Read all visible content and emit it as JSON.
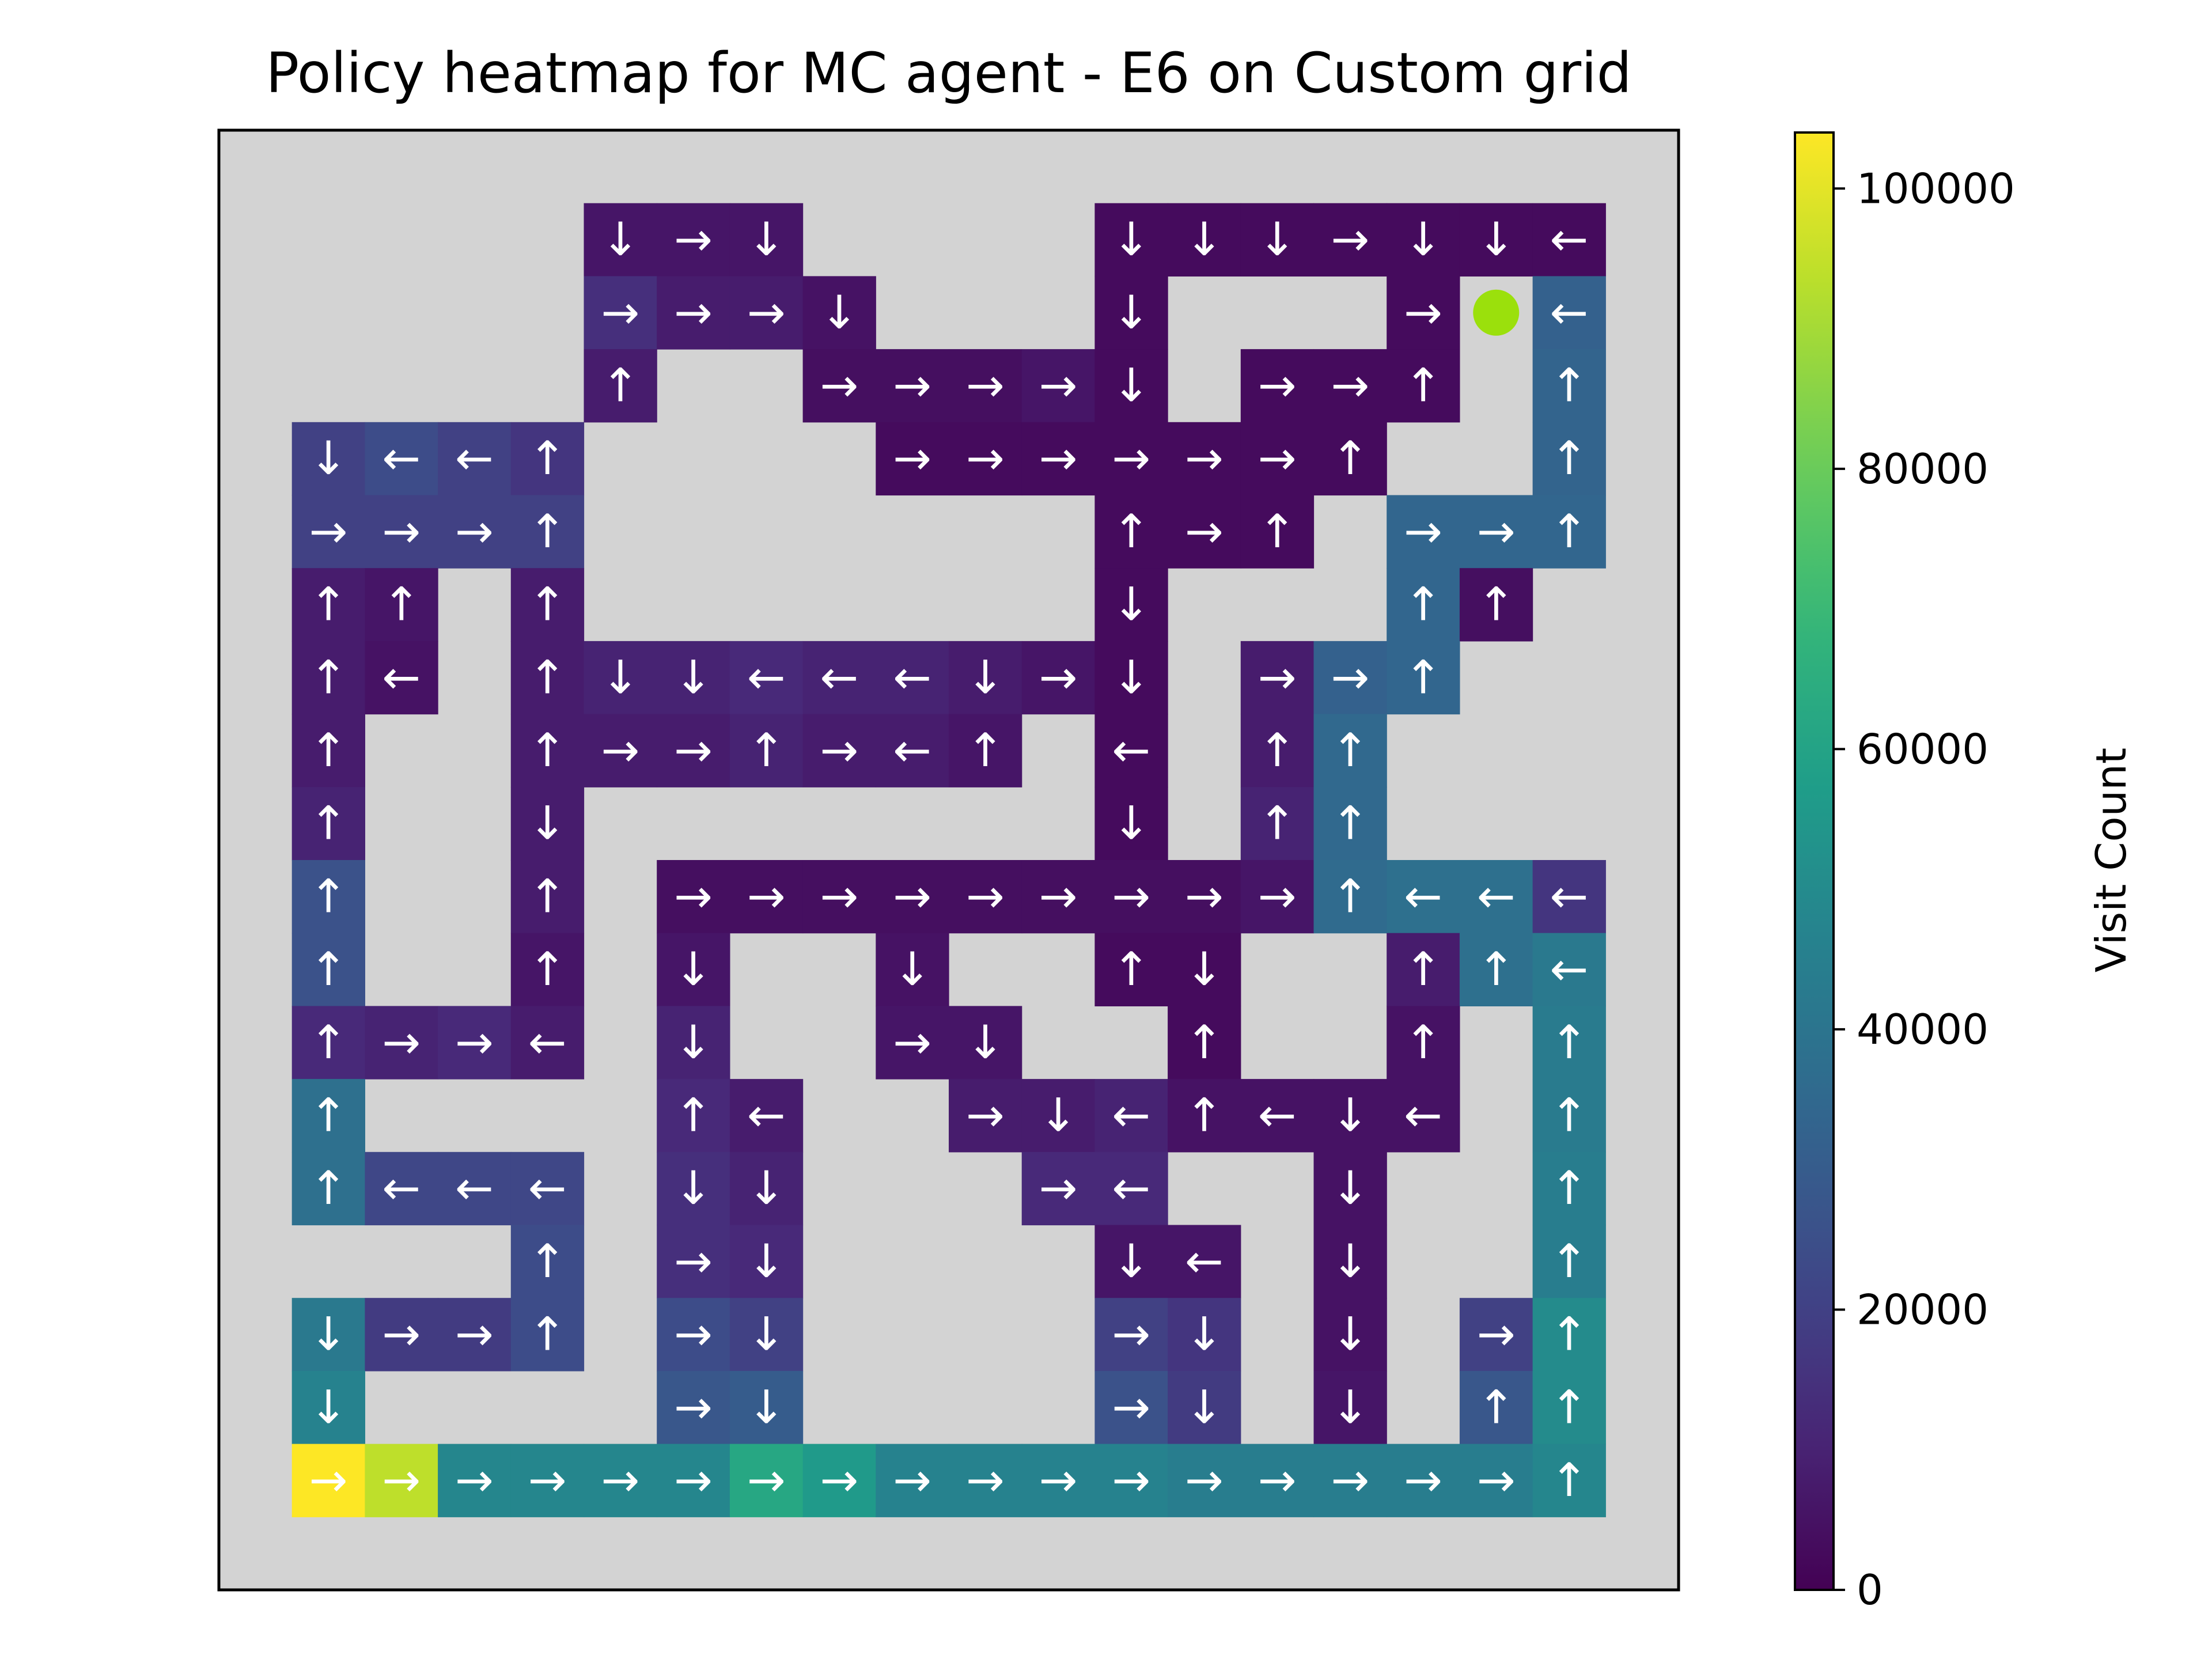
{
  "chart_data": {
    "type": "heatmap",
    "title": "Policy heatmap for MC agent - E6 on Custom grid",
    "colorbar": {
      "label": "Visit Count",
      "colormap": "viridis",
      "range": [
        0,
        104000
      ],
      "ticks": [
        0,
        20000,
        40000,
        60000,
        80000,
        100000
      ],
      "tick_labels": [
        "0",
        "20000",
        "40000",
        "60000",
        "80000",
        "100000"
      ]
    },
    "grid": {
      "rows": 20,
      "cols": 20,
      "wall_color": "#d3d3d3"
    },
    "goal": {
      "row": 2,
      "col": 17,
      "color": "#9be00c"
    },
    "cells": [
      [
        1,
        5,
        "↓",
        6000
      ],
      [
        1,
        6,
        "→",
        6000
      ],
      [
        1,
        7,
        "↓",
        6000
      ],
      [
        1,
        12,
        "↓",
        3000
      ],
      [
        1,
        13,
        "↓",
        3000
      ],
      [
        1,
        14,
        "↓",
        3000
      ],
      [
        1,
        15,
        "→",
        3000
      ],
      [
        1,
        16,
        "↓",
        3000
      ],
      [
        1,
        17,
        "↓",
        3000
      ],
      [
        1,
        18,
        "←",
        3000
      ],
      [
        2,
        5,
        "→",
        14000
      ],
      [
        2,
        6,
        "→",
        8000
      ],
      [
        2,
        7,
        "→",
        8000
      ],
      [
        2,
        8,
        "↓",
        5000
      ],
      [
        2,
        12,
        "↓",
        3000
      ],
      [
        2,
        16,
        "→",
        3000
      ],
      [
        2,
        18,
        "←",
        32000
      ],
      [
        3,
        5,
        "↑",
        8000
      ],
      [
        3,
        8,
        "→",
        4000
      ],
      [
        3,
        9,
        "→",
        4000
      ],
      [
        3,
        10,
        "→",
        4000
      ],
      [
        3,
        11,
        "→",
        6000
      ],
      [
        3,
        12,
        "↓",
        3000
      ],
      [
        3,
        14,
        "→",
        3000
      ],
      [
        3,
        15,
        "→",
        3000
      ],
      [
        3,
        16,
        "↑",
        3000
      ],
      [
        3,
        18,
        "↑",
        33000
      ],
      [
        4,
        1,
        "↓",
        20000
      ],
      [
        4,
        2,
        "←",
        24000
      ],
      [
        4,
        3,
        "←",
        20000
      ],
      [
        4,
        4,
        "↑",
        16000
      ],
      [
        4,
        9,
        "→",
        3000
      ],
      [
        4,
        10,
        "→",
        3000
      ],
      [
        4,
        11,
        "→",
        3000
      ],
      [
        4,
        12,
        "→",
        3000
      ],
      [
        4,
        13,
        "→",
        3000
      ],
      [
        4,
        14,
        "→",
        3000
      ],
      [
        4,
        15,
        "↑",
        3000
      ],
      [
        4,
        18,
        "↑",
        33000
      ],
      [
        5,
        1,
        "→",
        20000
      ],
      [
        5,
        2,
        "→",
        20000
      ],
      [
        5,
        3,
        "→",
        20000
      ],
      [
        5,
        4,
        "↑",
        20000
      ],
      [
        5,
        12,
        "↑",
        3000
      ],
      [
        5,
        13,
        "→",
        3000
      ],
      [
        5,
        14,
        "↑",
        3000
      ],
      [
        5,
        16,
        "→",
        34000
      ],
      [
        5,
        17,
        "→",
        34000
      ],
      [
        5,
        18,
        "↑",
        34000
      ],
      [
        6,
        1,
        "↑",
        8000
      ],
      [
        6,
        2,
        "↑",
        6000
      ],
      [
        6,
        4,
        "↑",
        8000
      ],
      [
        6,
        12,
        "↓",
        3000
      ],
      [
        6,
        16,
        "↑",
        34000
      ],
      [
        6,
        17,
        "↑",
        4000
      ],
      [
        7,
        1,
        "↑",
        8000
      ],
      [
        7,
        2,
        "←",
        5000
      ],
      [
        7,
        4,
        "↑",
        8000
      ],
      [
        7,
        5,
        "↓",
        10000
      ],
      [
        7,
        6,
        "↓",
        10000
      ],
      [
        7,
        7,
        "←",
        12000
      ],
      [
        7,
        8,
        "←",
        10000
      ],
      [
        7,
        9,
        "←",
        10000
      ],
      [
        7,
        10,
        "↓",
        8000
      ],
      [
        7,
        11,
        "→",
        6000
      ],
      [
        7,
        12,
        "↓",
        3000
      ],
      [
        7,
        14,
        "→",
        8000
      ],
      [
        7,
        15,
        "→",
        32000
      ],
      [
        7,
        16,
        "↑",
        34000
      ],
      [
        8,
        1,
        "↑",
        8000
      ],
      [
        8,
        4,
        "↑",
        8000
      ],
      [
        8,
        5,
        "→",
        8000
      ],
      [
        8,
        6,
        "→",
        8000
      ],
      [
        8,
        7,
        "↑",
        10000
      ],
      [
        8,
        8,
        "→",
        8000
      ],
      [
        8,
        9,
        "←",
        8000
      ],
      [
        8,
        10,
        "↑",
        6000
      ],
      [
        8,
        12,
        "←",
        3000
      ],
      [
        8,
        14,
        "↑",
        8000
      ],
      [
        8,
        15,
        "↑",
        35000
      ],
      [
        9,
        1,
        "↑",
        10000
      ],
      [
        9,
        4,
        "↓",
        8000
      ],
      [
        9,
        12,
        "↓",
        3000
      ],
      [
        9,
        14,
        "↑",
        10000
      ],
      [
        9,
        15,
        "↑",
        35000
      ],
      [
        10,
        1,
        "↑",
        26000
      ],
      [
        10,
        4,
        "↑",
        8000
      ],
      [
        10,
        6,
        "→",
        4000
      ],
      [
        10,
        7,
        "→",
        4000
      ],
      [
        10,
        8,
        "→",
        4000
      ],
      [
        10,
        9,
        "→",
        4000
      ],
      [
        10,
        10,
        "→",
        4000
      ],
      [
        10,
        11,
        "→",
        4000
      ],
      [
        10,
        12,
        "→",
        4000
      ],
      [
        10,
        13,
        "→",
        4000
      ],
      [
        10,
        14,
        "→",
        6000
      ],
      [
        10,
        15,
        "↑",
        36000
      ],
      [
        10,
        16,
        "←",
        38000
      ],
      [
        10,
        17,
        "←",
        38000
      ],
      [
        10,
        18,
        "←",
        16000
      ],
      [
        11,
        1,
        "↑",
        26000
      ],
      [
        11,
        4,
        "↑",
        6000
      ],
      [
        11,
        6,
        "↓",
        6000
      ],
      [
        11,
        9,
        "↓",
        5000
      ],
      [
        11,
        12,
        "↑",
        3000
      ],
      [
        11,
        13,
        "↓",
        3000
      ],
      [
        11,
        16,
        "↑",
        8000
      ],
      [
        11,
        17,
        "↑",
        38000
      ],
      [
        11,
        18,
        "←",
        42000
      ],
      [
        12,
        1,
        "↑",
        12000
      ],
      [
        12,
        2,
        "→",
        10000
      ],
      [
        12,
        3,
        "→",
        12000
      ],
      [
        12,
        4,
        "←",
        8000
      ],
      [
        12,
        6,
        "↓",
        10000
      ],
      [
        12,
        9,
        "→",
        6000
      ],
      [
        12,
        10,
        "↓",
        6000
      ],
      [
        12,
        13,
        "↑",
        3000
      ],
      [
        12,
        16,
        "↑",
        5000
      ],
      [
        12,
        18,
        "↑",
        43000
      ],
      [
        13,
        1,
        "↑",
        38000
      ],
      [
        13,
        6,
        "↑",
        12000
      ],
      [
        13,
        7,
        "←",
        8000
      ],
      [
        13,
        10,
        "→",
        8000
      ],
      [
        13,
        11,
        "↓",
        8000
      ],
      [
        13,
        12,
        "←",
        10000
      ],
      [
        13,
        13,
        "↑",
        5000
      ],
      [
        13,
        14,
        "←",
        5000
      ],
      [
        13,
        15,
        "↓",
        5000
      ],
      [
        13,
        16,
        "←",
        5000
      ],
      [
        13,
        18,
        "↑",
        43000
      ],
      [
        14,
        1,
        "↑",
        38000
      ],
      [
        14,
        2,
        "←",
        22000
      ],
      [
        14,
        3,
        "←",
        22000
      ],
      [
        14,
        4,
        "←",
        22000
      ],
      [
        14,
        6,
        "↓",
        14000
      ],
      [
        14,
        7,
        "↓",
        10000
      ],
      [
        14,
        11,
        "→",
        12000
      ],
      [
        14,
        12,
        "←",
        12000
      ],
      [
        14,
        15,
        "↓",
        5000
      ],
      [
        14,
        18,
        "↑",
        44000
      ],
      [
        15,
        4,
        "↑",
        24000
      ],
      [
        15,
        6,
        "→",
        14000
      ],
      [
        15,
        7,
        "↓",
        12000
      ],
      [
        15,
        12,
        "↓",
        6000
      ],
      [
        15,
        13,
        "←",
        6000
      ],
      [
        15,
        15,
        "↓",
        5000
      ],
      [
        15,
        18,
        "↑",
        44000
      ],
      [
        16,
        1,
        "↓",
        42000
      ],
      [
        16,
        2,
        "→",
        18000
      ],
      [
        16,
        3,
        "→",
        18000
      ],
      [
        16,
        4,
        "↑",
        24000
      ],
      [
        16,
        6,
        "→",
        24000
      ],
      [
        16,
        7,
        "↓",
        20000
      ],
      [
        16,
        12,
        "→",
        20000
      ],
      [
        16,
        13,
        "↓",
        16000
      ],
      [
        16,
        15,
        "↓",
        5000
      ],
      [
        16,
        17,
        "→",
        20000
      ],
      [
        16,
        18,
        "↑",
        50000
      ],
      [
        17,
        1,
        "↓",
        46000
      ],
      [
        17,
        6,
        "→",
        28000
      ],
      [
        17,
        7,
        "↓",
        30000
      ],
      [
        17,
        12,
        "→",
        26000
      ],
      [
        17,
        13,
        "↓",
        18000
      ],
      [
        17,
        15,
        "↓",
        6000
      ],
      [
        17,
        17,
        "↑",
        28000
      ],
      [
        17,
        18,
        "↑",
        50000
      ],
      [
        18,
        1,
        "→",
        104000
      ],
      [
        18,
        2,
        "→",
        94000
      ],
      [
        18,
        3,
        "→",
        48000
      ],
      [
        18,
        4,
        "→",
        48000
      ],
      [
        18,
        5,
        "→",
        48000
      ],
      [
        18,
        6,
        "→",
        48000
      ],
      [
        18,
        7,
        "→",
        62000
      ],
      [
        18,
        8,
        "→",
        56000
      ],
      [
        18,
        9,
        "→",
        46000
      ],
      [
        18,
        10,
        "→",
        46000
      ],
      [
        18,
        11,
        "→",
        46000
      ],
      [
        18,
        12,
        "→",
        46000
      ],
      [
        18,
        13,
        "→",
        44000
      ],
      [
        18,
        14,
        "→",
        44000
      ],
      [
        18,
        15,
        "→",
        44000
      ],
      [
        18,
        16,
        "→",
        44000
      ],
      [
        18,
        17,
        "→",
        44000
      ],
      [
        18,
        18,
        "↑",
        48000
      ]
    ]
  }
}
